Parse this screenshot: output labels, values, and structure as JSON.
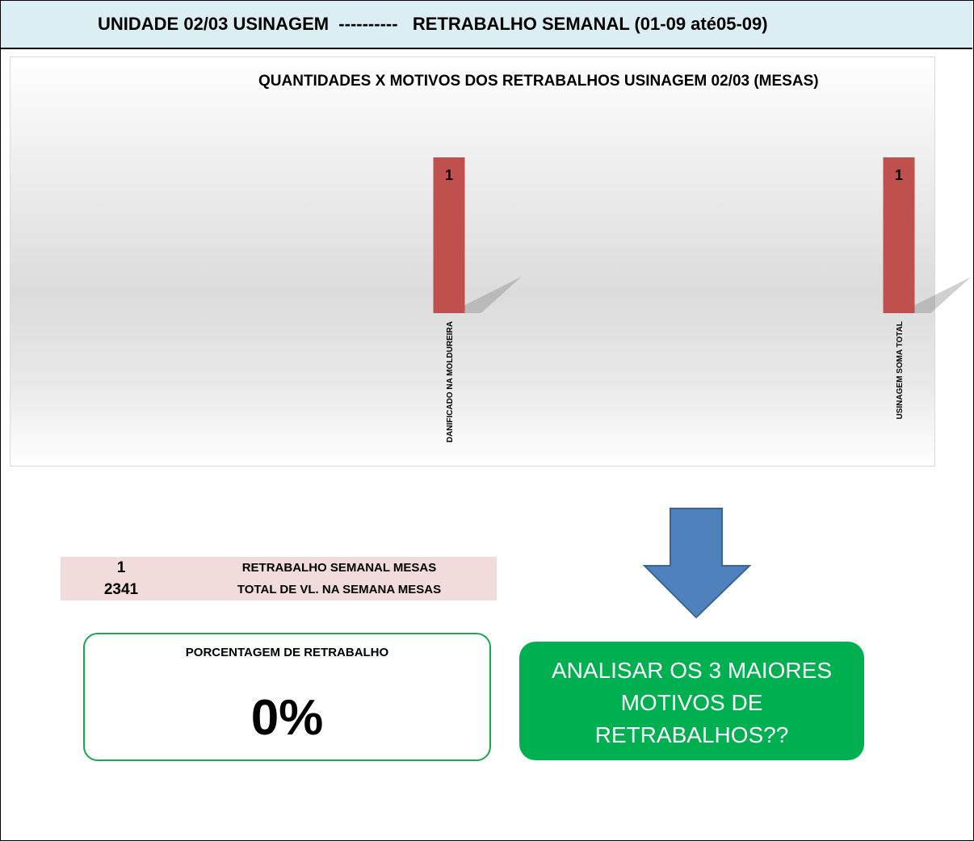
{
  "header": {
    "title": "UNIDADE 02/03 USINAGEM  ----------   RETRABALHO SEMANAL (01-09 até05-09)"
  },
  "chart_data": {
    "type": "bar",
    "title": "QUANTIDADES X MOTIVOS DOS RETRABALHOS USINAGEM 02/03 (MESAS)",
    "categories": [
      "DANIFICADO NA MOLDUREIRA",
      "USINAGEM SOMA TOTAL"
    ],
    "values": [
      1,
      1
    ],
    "data_labels": [
      "1",
      "1"
    ],
    "bar_color": "#c0504d",
    "ylim": [
      0,
      1
    ],
    "grid": false,
    "legend": "none"
  },
  "summary": {
    "rows": [
      {
        "value": "1",
        "label": "RETRABALHO SEMANAL MESAS"
      },
      {
        "value": "2341",
        "label": "TOTAL DE VL. NA SEMANA MESAS"
      }
    ]
  },
  "percentage_box": {
    "title": "PORCENTAGEM DE RETRABALHO",
    "value": "0%"
  },
  "arrow": {
    "icon": "down-arrow-icon",
    "color": "#4f81bd"
  },
  "callout": {
    "text": "ANALISAR OS 3 MAIORES MOTIVOS DE RETRABALHOS??",
    "color": "#00b050"
  }
}
